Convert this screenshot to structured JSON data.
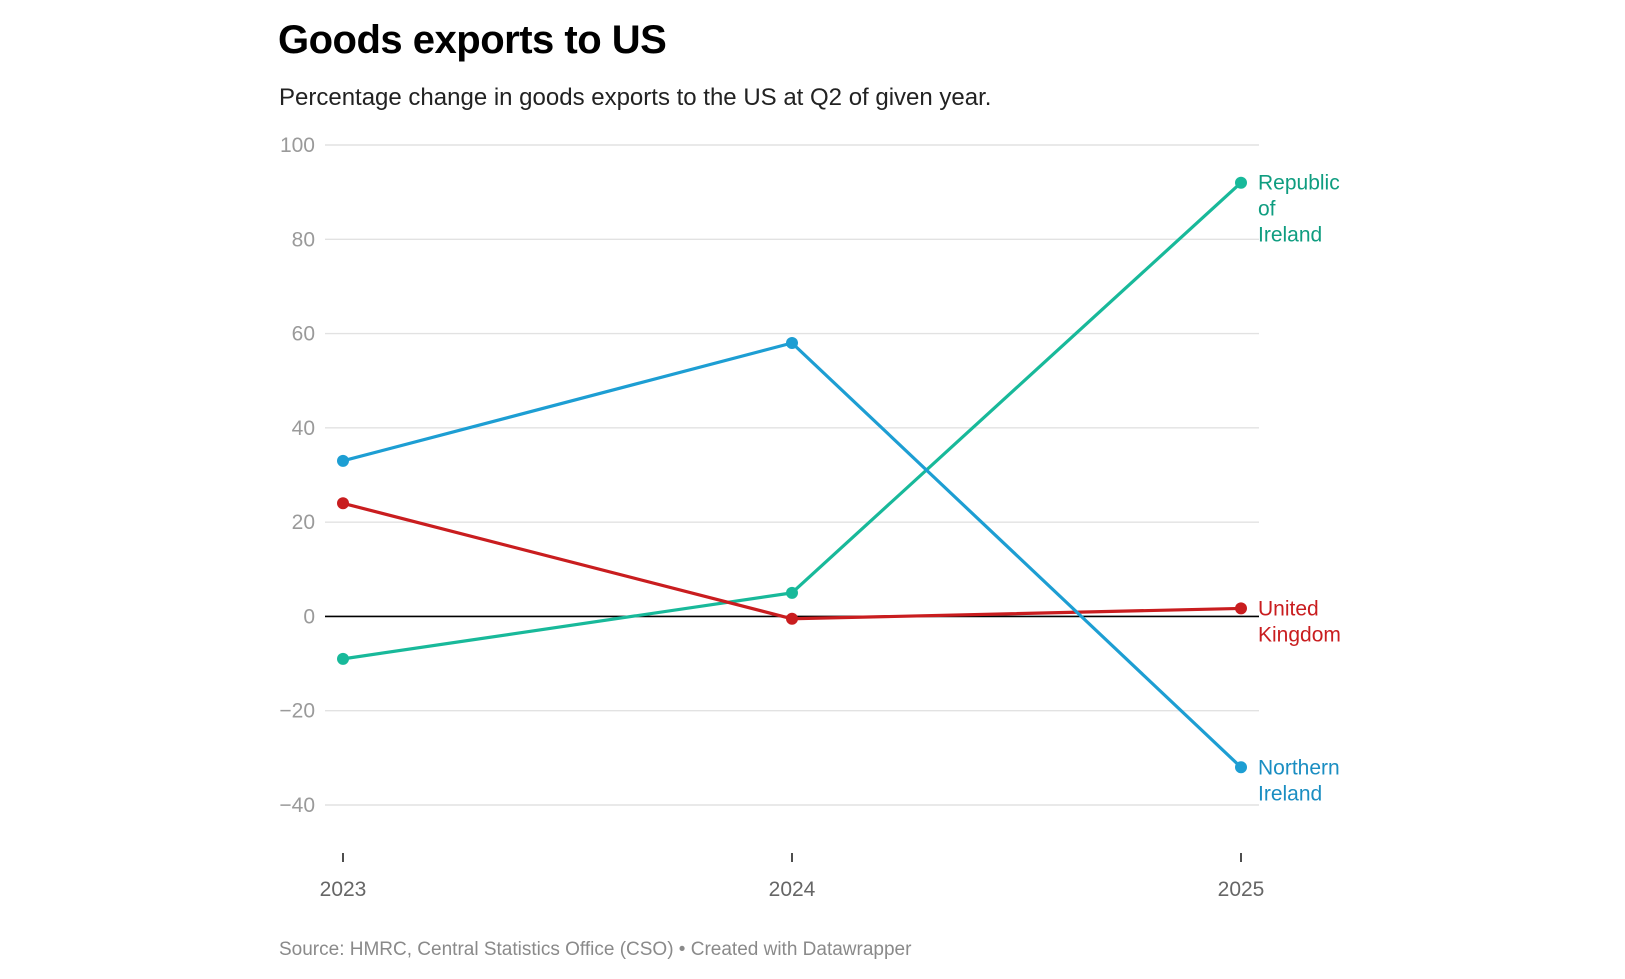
{
  "header": {
    "title": "Goods exports to US",
    "subtitle": "Percentage change in goods exports to the US at Q2 of given year."
  },
  "footer": {
    "source": "Source: HMRC, Central Statistics Office (CSO) • Created with Datawrapper"
  },
  "chart_data": {
    "type": "line",
    "title": "Goods exports to US",
    "subtitle": "Percentage change in goods exports to the US at Q2 of given year.",
    "xlabel": "",
    "ylabel": "",
    "x": [
      "2023",
      "2024",
      "2025"
    ],
    "ylim": [
      -40,
      100
    ],
    "yticks": [
      100,
      80,
      60,
      40,
      20,
      0,
      -20,
      -40
    ],
    "ytick_labels": [
      "100",
      "80",
      "60",
      "40",
      "20",
      "0",
      "−20",
      "−40"
    ],
    "grid": true,
    "legend": "direct labels at right end of lines",
    "series": [
      {
        "name": "Republic of Ireland",
        "label_lines": [
          "Republic",
          "of",
          "Ireland"
        ],
        "color": "#18b99a",
        "label_color": "#0f9d80",
        "values": [
          -9,
          5,
          92
        ]
      },
      {
        "name": "United Kingdom",
        "label_lines": [
          "United",
          "Kingdom"
        ],
        "color": "#c91d1f",
        "label_color": "#c91d1f",
        "values": [
          24,
          -0.5,
          1.7
        ]
      },
      {
        "name": "Northern Ireland",
        "label_lines": [
          "Northern",
          "Ireland"
        ],
        "color": "#1d9ed3",
        "label_color": "#1a8ec2",
        "values": [
          33,
          58,
          -32
        ]
      }
    ],
    "source": "Source: HMRC, Central Statistics Office (CSO) • Created with Datawrapper"
  }
}
